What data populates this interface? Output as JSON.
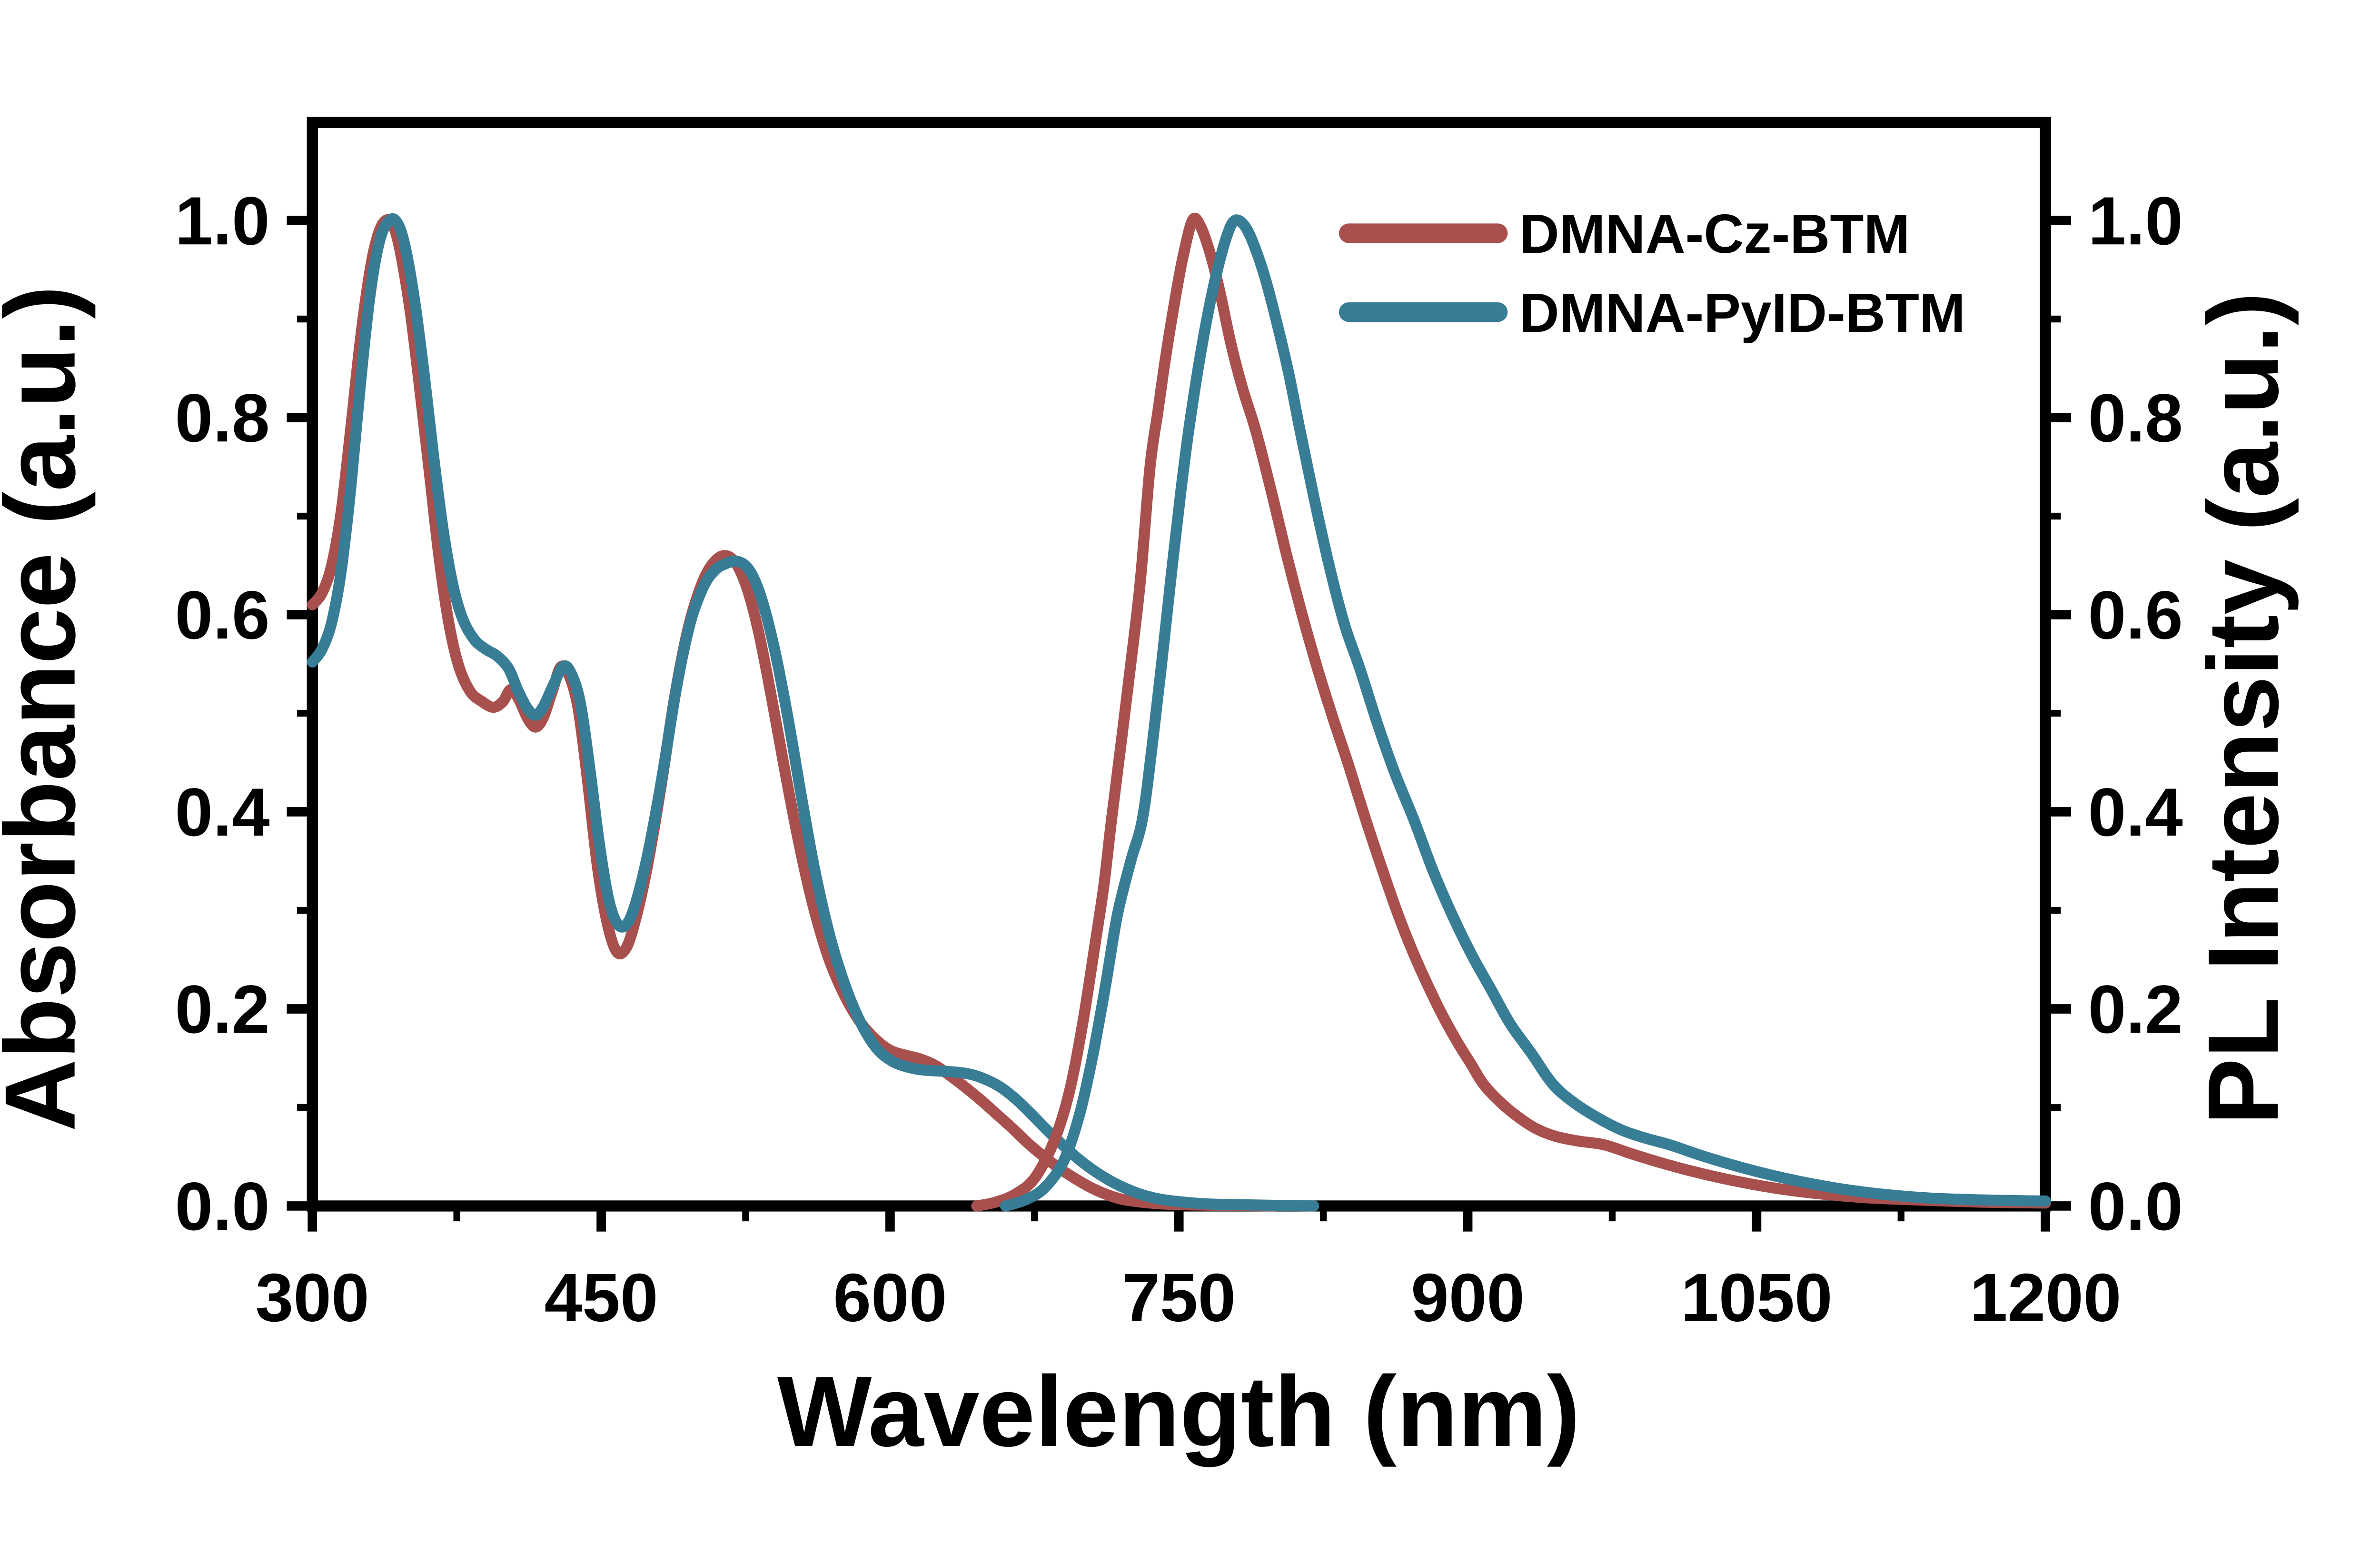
{
  "figure": {
    "background": "#ffffff",
    "axis_color": "#000000"
  },
  "chart_data": {
    "type": "line",
    "title": "",
    "xlabel": "Wavelength (nm)",
    "ylabel_left": "Absorbance (a.u.)",
    "ylabel_right": "PL Intensity (a.u.)",
    "x_range": [
      300,
      1200
    ],
    "y_range": [
      0.0,
      1.0
    ],
    "grid": false,
    "legend_position": "upper-right-inside",
    "x_major_ticks": [
      300,
      450,
      600,
      750,
      900,
      1050,
      1200
    ],
    "x_minor_ticks": [
      375,
      525,
      675,
      825,
      975,
      1125
    ],
    "x_tick_labels": [
      "300",
      "450",
      "600",
      "750",
      "900",
      "1050",
      "1200"
    ],
    "y_major_ticks": [
      0.0,
      0.2,
      0.4,
      0.6,
      0.8,
      1.0
    ],
    "y_minor_ticks": [
      0.1,
      0.3,
      0.5,
      0.7,
      0.9
    ],
    "y_tick_labels": [
      "0.0",
      "0.2",
      "0.4",
      "0.6",
      "0.8",
      "1.0"
    ],
    "legend": [
      {
        "label": "DMNA-Cz-BTM",
        "color": "#A8504E"
      },
      {
        "label": "DMNA-PyID-BTM",
        "color": "#377D96"
      }
    ],
    "series": [
      {
        "name": "DMNA-Cz-BTM",
        "kind": "absorbance",
        "color": "#A8504E",
        "points": [
          [
            300,
            0.61
          ],
          [
            305,
            0.622
          ],
          [
            310,
            0.65
          ],
          [
            315,
            0.705
          ],
          [
            320,
            0.79
          ],
          [
            325,
            0.88
          ],
          [
            330,
            0.95
          ],
          [
            334,
            0.985
          ],
          [
            338,
            1.0
          ],
          [
            342,
            0.995
          ],
          [
            346,
            0.965
          ],
          [
            351,
            0.905
          ],
          [
            356,
            0.825
          ],
          [
            361,
            0.74
          ],
          [
            366,
            0.655
          ],
          [
            371,
            0.59
          ],
          [
            376,
            0.548
          ],
          [
            382,
            0.522
          ],
          [
            388,
            0.512
          ],
          [
            394,
            0.506
          ],
          [
            399,
            0.512
          ],
          [
            403,
            0.524
          ],
          [
            407,
            0.515
          ],
          [
            412,
            0.494
          ],
          [
            416,
            0.486
          ],
          [
            420,
            0.496
          ],
          [
            425,
            0.525
          ],
          [
            429,
            0.547
          ],
          [
            433,
            0.54
          ],
          [
            438,
            0.505
          ],
          [
            443,
            0.43
          ],
          [
            448,
            0.345
          ],
          [
            453,
            0.288
          ],
          [
            458,
            0.258
          ],
          [
            463,
            0.262
          ],
          [
            468,
            0.292
          ],
          [
            474,
            0.345
          ],
          [
            481,
            0.425
          ],
          [
            488,
            0.515
          ],
          [
            495,
            0.585
          ],
          [
            502,
            0.63
          ],
          [
            508,
            0.652
          ],
          [
            514,
            0.66
          ],
          [
            520,
            0.652
          ],
          [
            526,
            0.625
          ],
          [
            532,
            0.58
          ],
          [
            539,
            0.51
          ],
          [
            546,
            0.435
          ],
          [
            553,
            0.365
          ],
          [
            560,
            0.305
          ],
          [
            568,
            0.252
          ],
          [
            576,
            0.215
          ],
          [
            584,
            0.188
          ],
          [
            592,
            0.17
          ],
          [
            600,
            0.158
          ],
          [
            608,
            0.153
          ],
          [
            616,
            0.149
          ],
          [
            624,
            0.142
          ],
          [
            632,
            0.131
          ],
          [
            640,
            0.119
          ],
          [
            648,
            0.106
          ],
          [
            656,
            0.092
          ],
          [
            664,
            0.078
          ],
          [
            672,
            0.063
          ],
          [
            680,
            0.05
          ],
          [
            688,
            0.038
          ],
          [
            696,
            0.028
          ],
          [
            704,
            0.019
          ],
          [
            712,
            0.012
          ],
          [
            720,
            0.007
          ],
          [
            730,
            0.004
          ],
          [
            742,
            0.002
          ],
          [
            760,
            0.001
          ],
          [
            800,
            0.0
          ]
        ]
      },
      {
        "name": "DMNA-PyID-BTM",
        "kind": "absorbance",
        "color": "#377D96",
        "points": [
          [
            300,
            0.552
          ],
          [
            305,
            0.565
          ],
          [
            310,
            0.592
          ],
          [
            315,
            0.645
          ],
          [
            320,
            0.73
          ],
          [
            325,
            0.835
          ],
          [
            330,
            0.925
          ],
          [
            335,
            0.98
          ],
          [
            340,
            1.0
          ],
          [
            344,
            0.998
          ],
          [
            348,
            0.975
          ],
          [
            353,
            0.92
          ],
          [
            358,
            0.845
          ],
          [
            363,
            0.76
          ],
          [
            368,
            0.685
          ],
          [
            373,
            0.63
          ],
          [
            378,
            0.596
          ],
          [
            384,
            0.575
          ],
          [
            390,
            0.565
          ],
          [
            396,
            0.558
          ],
          [
            402,
            0.545
          ],
          [
            407,
            0.522
          ],
          [
            412,
            0.504
          ],
          [
            416,
            0.498
          ],
          [
            420,
            0.507
          ],
          [
            425,
            0.528
          ],
          [
            430,
            0.547
          ],
          [
            434,
            0.542
          ],
          [
            439,
            0.512
          ],
          [
            444,
            0.445
          ],
          [
            449,
            0.368
          ],
          [
            454,
            0.31
          ],
          [
            459,
            0.285
          ],
          [
            464,
            0.288
          ],
          [
            469,
            0.315
          ],
          [
            475,
            0.365
          ],
          [
            482,
            0.44
          ],
          [
            489,
            0.525
          ],
          [
            496,
            0.59
          ],
          [
            503,
            0.628
          ],
          [
            509,
            0.645
          ],
          [
            515,
            0.652
          ],
          [
            521,
            0.654
          ],
          [
            527,
            0.645
          ],
          [
            533,
            0.618
          ],
          [
            540,
            0.565
          ],
          [
            547,
            0.495
          ],
          [
            554,
            0.415
          ],
          [
            561,
            0.34
          ],
          [
            569,
            0.272
          ],
          [
            577,
            0.222
          ],
          [
            585,
            0.185
          ],
          [
            593,
            0.16
          ],
          [
            601,
            0.147
          ],
          [
            609,
            0.141
          ],
          [
            617,
            0.138
          ],
          [
            625,
            0.137
          ],
          [
            633,
            0.136
          ],
          [
            641,
            0.134
          ],
          [
            649,
            0.129
          ],
          [
            657,
            0.121
          ],
          [
            665,
            0.109
          ],
          [
            673,
            0.094
          ],
          [
            681,
            0.078
          ],
          [
            689,
            0.063
          ],
          [
            697,
            0.049
          ],
          [
            705,
            0.037
          ],
          [
            713,
            0.027
          ],
          [
            721,
            0.019
          ],
          [
            730,
            0.012
          ],
          [
            740,
            0.007
          ],
          [
            752,
            0.004
          ],
          [
            766,
            0.002
          ],
          [
            790,
            0.001
          ],
          [
            820,
            0.0
          ]
        ]
      },
      {
        "name": "DMNA-Cz-BTM",
        "kind": "pl",
        "color": "#A8504E",
        "points": [
          [
            645,
            0.0
          ],
          [
            655,
            0.004
          ],
          [
            665,
            0.012
          ],
          [
            675,
            0.028
          ],
          [
            685,
            0.065
          ],
          [
            693,
            0.115
          ],
          [
            700,
            0.185
          ],
          [
            706,
            0.26
          ],
          [
            711,
            0.325
          ],
          [
            715,
            0.392
          ],
          [
            720,
            0.47
          ],
          [
            725,
            0.55
          ],
          [
            730,
            0.635
          ],
          [
            735,
            0.75
          ],
          [
            739,
            0.805
          ],
          [
            743,
            0.86
          ],
          [
            748,
            0.92
          ],
          [
            752,
            0.962
          ],
          [
            757,
            1.0
          ],
          [
            761,
            0.995
          ],
          [
            766,
            0.968
          ],
          [
            771,
            0.93
          ],
          [
            777,
            0.875
          ],
          [
            783,
            0.83
          ],
          [
            790,
            0.786
          ],
          [
            798,
            0.725
          ],
          [
            806,
            0.66
          ],
          [
            814,
            0.6
          ],
          [
            822,
            0.545
          ],
          [
            830,
            0.495
          ],
          [
            838,
            0.448
          ],
          [
            847,
            0.392
          ],
          [
            855,
            0.345
          ],
          [
            863,
            0.3
          ],
          [
            871,
            0.26
          ],
          [
            879,
            0.225
          ],
          [
            887,
            0.193
          ],
          [
            895,
            0.165
          ],
          [
            902,
            0.143
          ],
          [
            908,
            0.124
          ],
          [
            916,
            0.107
          ],
          [
            925,
            0.092
          ],
          [
            935,
            0.079
          ],
          [
            945,
            0.071
          ],
          [
            957,
            0.066
          ],
          [
            971,
            0.062
          ],
          [
            985,
            0.053
          ],
          [
            1000,
            0.044
          ],
          [
            1015,
            0.036
          ],
          [
            1030,
            0.029
          ],
          [
            1045,
            0.023
          ],
          [
            1060,
            0.018
          ],
          [
            1075,
            0.014
          ],
          [
            1090,
            0.011
          ],
          [
            1110,
            0.008
          ],
          [
            1135,
            0.006
          ],
          [
            1165,
            0.004
          ],
          [
            1200,
            0.003
          ]
        ]
      },
      {
        "name": "DMNA-PyID-BTM",
        "kind": "pl",
        "color": "#377D96",
        "points": [
          [
            660,
            0.0
          ],
          [
            670,
            0.006
          ],
          [
            680,
            0.018
          ],
          [
            690,
            0.045
          ],
          [
            698,
            0.09
          ],
          [
            705,
            0.15
          ],
          [
            712,
            0.225
          ],
          [
            718,
            0.295
          ],
          [
            725,
            0.35
          ],
          [
            731,
            0.392
          ],
          [
            736,
            0.465
          ],
          [
            741,
            0.55
          ],
          [
            746,
            0.64
          ],
          [
            751,
            0.725
          ],
          [
            755,
            0.786
          ],
          [
            760,
            0.85
          ],
          [
            765,
            0.905
          ],
          [
            770,
            0.95
          ],
          [
            775,
            0.985
          ],
          [
            779,
            1.0
          ],
          [
            784,
            0.995
          ],
          [
            789,
            0.975
          ],
          [
            795,
            0.94
          ],
          [
            801,
            0.895
          ],
          [
            807,
            0.845
          ],
          [
            813,
            0.786
          ],
          [
            820,
            0.72
          ],
          [
            828,
            0.65
          ],
          [
            836,
            0.59
          ],
          [
            844,
            0.545
          ],
          [
            853,
            0.49
          ],
          [
            862,
            0.44
          ],
          [
            872,
            0.392
          ],
          [
            882,
            0.34
          ],
          [
            892,
            0.295
          ],
          [
            902,
            0.255
          ],
          [
            912,
            0.22
          ],
          [
            922,
            0.185
          ],
          [
            933,
            0.155
          ],
          [
            944,
            0.124
          ],
          [
            955,
            0.105
          ],
          [
            967,
            0.09
          ],
          [
            980,
            0.077
          ],
          [
            992,
            0.069
          ],
          [
            1005,
            0.062
          ],
          [
            1020,
            0.052
          ],
          [
            1035,
            0.043
          ],
          [
            1050,
            0.035
          ],
          [
            1065,
            0.028
          ],
          [
            1080,
            0.022
          ],
          [
            1095,
            0.017
          ],
          [
            1115,
            0.012
          ],
          [
            1140,
            0.008
          ],
          [
            1170,
            0.006
          ],
          [
            1200,
            0.005
          ]
        ]
      }
    ]
  }
}
